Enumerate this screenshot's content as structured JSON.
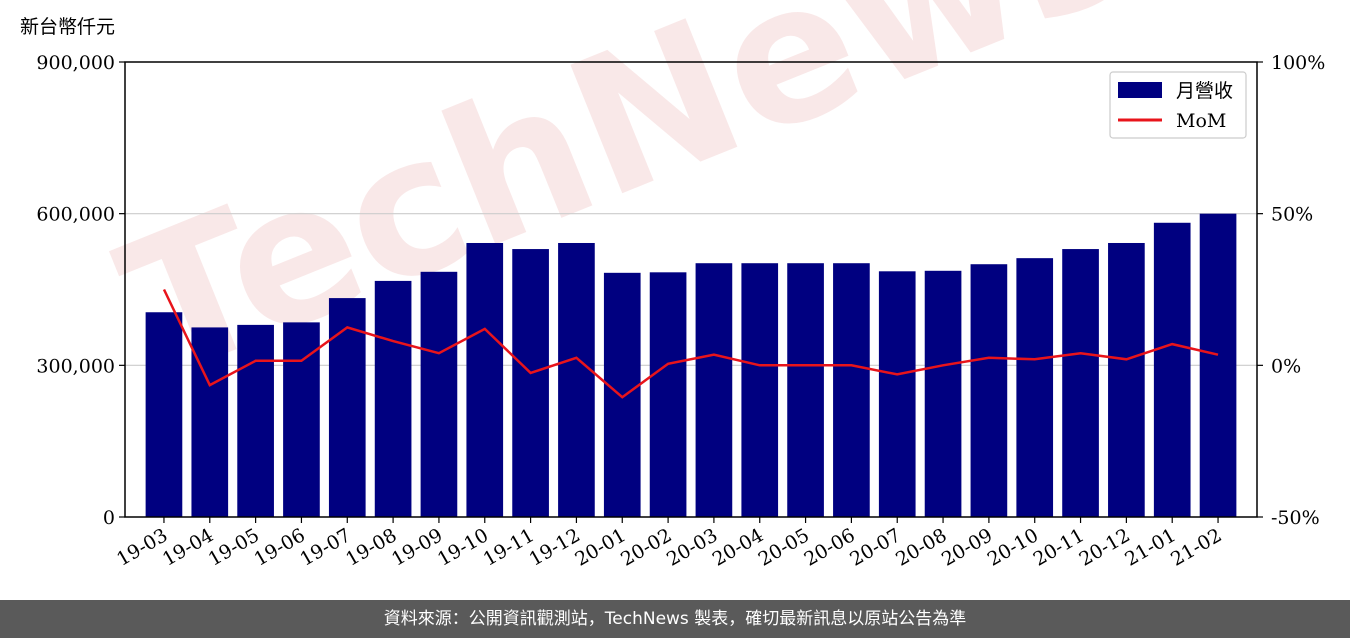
{
  "footer": {
    "source_text": "資料來源：公開資訊觀測站，TechNews 製表，確切最新訊息以原站公告為準"
  },
  "watermark": {
    "text": "TechNews"
  },
  "colors": {
    "bar": "#000080",
    "line": "#e8141b",
    "grid": "#cccccc",
    "footer_bg": "#5a5a5a",
    "watermark": "#f2c8c8"
  },
  "chart_data": {
    "type": "bar",
    "ylabel_left": "新台幣仟元",
    "categories": [
      "19-03",
      "19-04",
      "19-05",
      "19-06",
      "19-07",
      "19-08",
      "19-09",
      "19-10",
      "19-11",
      "19-12",
      "20-01",
      "20-02",
      "20-03",
      "20-04",
      "20-05",
      "20-06",
      "20-07",
      "20-08",
      "20-09",
      "20-10",
      "20-11",
      "20-12",
      "21-01",
      "21-02"
    ],
    "series": [
      {
        "name": "月營收",
        "axis": "left",
        "type": "bar",
        "values": [
          405000,
          375000,
          380000,
          385000,
          433000,
          467000,
          485000,
          542000,
          530000,
          542000,
          483000,
          484000,
          502000,
          502000,
          502000,
          502000,
          486000,
          487000,
          500000,
          512000,
          530000,
          542000,
          582000,
          600000
        ]
      },
      {
        "name": "MoM",
        "axis": "right",
        "type": "line",
        "values": [
          25,
          -6.5,
          1.5,
          1.5,
          12.5,
          8,
          4,
          12,
          -2.5,
          2.5,
          -10.5,
          0.5,
          3.5,
          0,
          0,
          0,
          -3,
          0,
          2.5,
          2,
          4,
          2,
          7,
          3.5
        ]
      }
    ],
    "ylim_left": [
      0,
      900000
    ],
    "yticks_left": [
      "0",
      "300,000",
      "600,000",
      "900,000"
    ],
    "ylim_right": [
      -50,
      100
    ],
    "yticks_right": [
      "-50%",
      "0%",
      "50%",
      "100%"
    ],
    "grid": "horizontal",
    "legend_position": "top-right"
  }
}
